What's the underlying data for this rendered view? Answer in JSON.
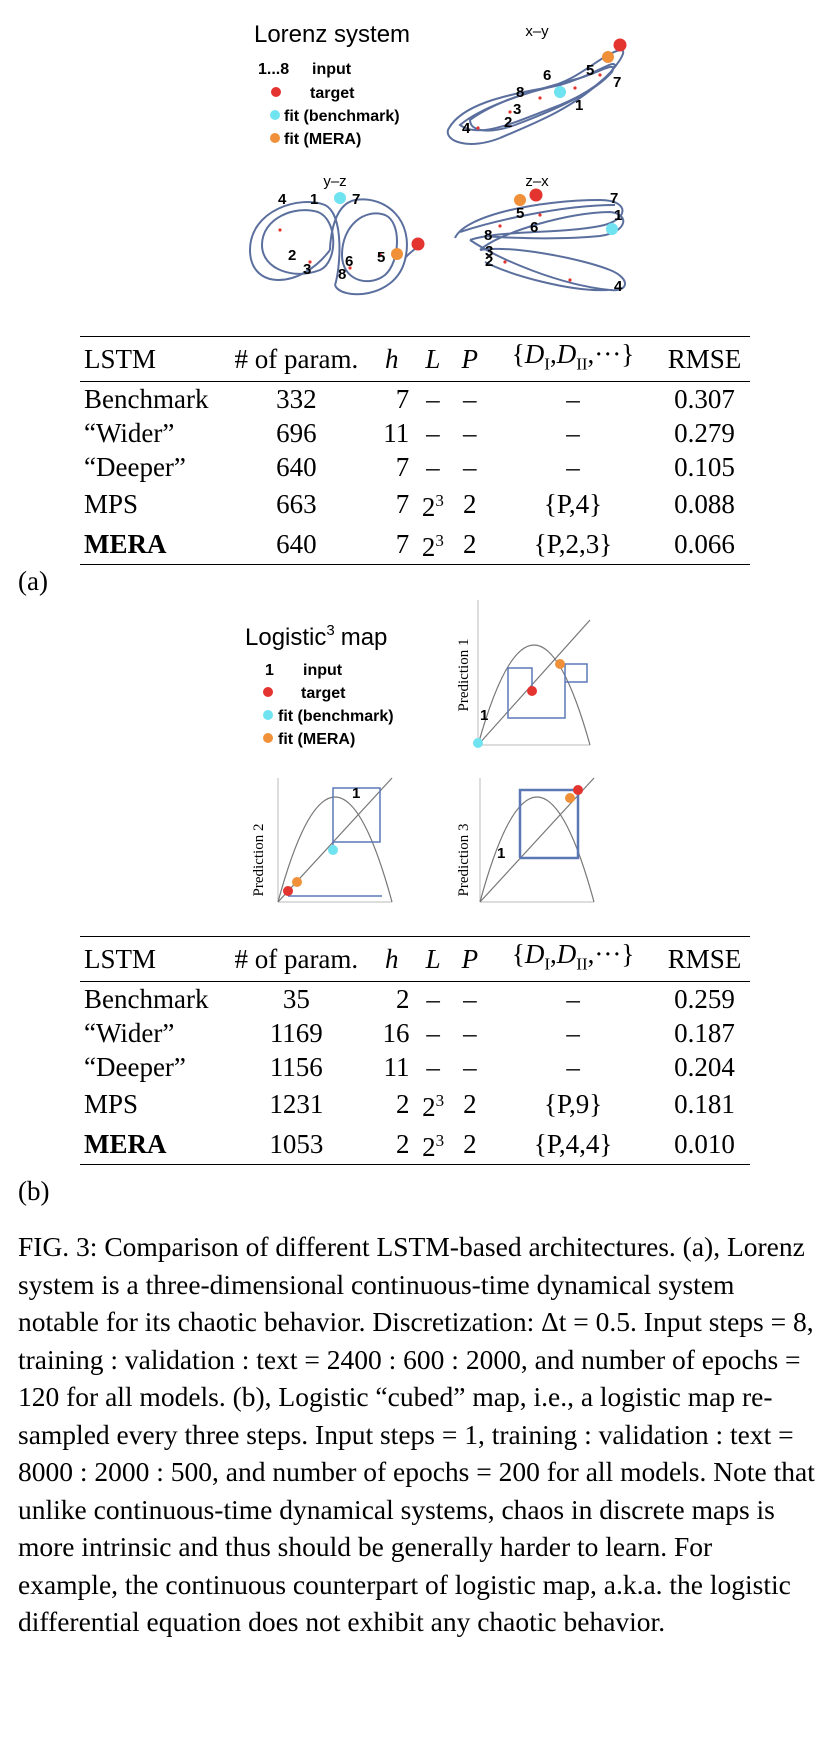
{
  "figure_a": {
    "title": "Lorenz system",
    "legend": [
      {
        "marker": "1...8",
        "label": "input"
      },
      {
        "marker": "red-dot",
        "label": "target"
      },
      {
        "marker": "cyan-dot",
        "label": "fit (benchmark)"
      },
      {
        "marker": "orange-dot",
        "label": "fit (MERA)"
      }
    ],
    "panels": [
      "x–y",
      "y–z",
      "z–x"
    ]
  },
  "table_a": {
    "headers": [
      "LSTM",
      "# of param.",
      "h",
      "L",
      "P",
      "{D_I, D_II, ···}",
      "RMSE"
    ],
    "rows": [
      {
        "name": "Benchmark",
        "params": "332",
        "h": "7",
        "L": "–",
        "P": "–",
        "D": "–",
        "rmse": "0.307"
      },
      {
        "name": "“Wider”",
        "params": "696",
        "h": "11",
        "L": "–",
        "P": "–",
        "D": "–",
        "rmse": "0.279"
      },
      {
        "name": "“Deeper”",
        "params": "640",
        "h": "7",
        "L": "–",
        "P": "–",
        "D": "–",
        "rmse": "0.105"
      },
      {
        "name": "MPS",
        "params": "663",
        "h": "7",
        "L": "2",
        "L_exp": "3",
        "P": "2",
        "D": "{P,4}",
        "rmse": "0.088"
      },
      {
        "name": "MERA",
        "params": "640",
        "h": "7",
        "L": "2",
        "L_exp": "3",
        "P": "2",
        "D": "{P,2,3}",
        "rmse": "0.066"
      }
    ]
  },
  "label_a": "(a)",
  "figure_b": {
    "title": "Logistic",
    "title_sup": "3",
    "title_suffix": "map",
    "legend": [
      {
        "marker": "1",
        "label": "input"
      },
      {
        "marker": "red-dot",
        "label": "target"
      },
      {
        "marker": "cyan-dot",
        "label": "fit (benchmark)"
      },
      {
        "marker": "orange-dot",
        "label": "fit (MERA)"
      }
    ],
    "panels": [
      "Prediction 1",
      "Prediction 2",
      "Prediction 3"
    ]
  },
  "table_b": {
    "headers": [
      "LSTM",
      "# of param.",
      "h",
      "L",
      "P",
      "{D_I, D_II, ···}",
      "RMSE"
    ],
    "rows": [
      {
        "name": "Benchmark",
        "params": "35",
        "h": "2",
        "L": "–",
        "P": "–",
        "D": "–",
        "rmse": "0.259"
      },
      {
        "name": "“Wider”",
        "params": "1169",
        "h": "16",
        "L": "–",
        "P": "–",
        "D": "–",
        "rmse": "0.187"
      },
      {
        "name": "“Deeper”",
        "params": "1156",
        "h": "11",
        "L": "–",
        "P": "–",
        "D": "–",
        "rmse": "0.204"
      },
      {
        "name": "MPS",
        "params": "1231",
        "h": "2",
        "L": "2",
        "L_exp": "3",
        "P": "2",
        "D": "{P,9}",
        "rmse": "0.181"
      },
      {
        "name": "MERA",
        "params": "1053",
        "h": "2",
        "L": "2",
        "L_exp": "3",
        "P": "2",
        "D": "{P,4,4}",
        "rmse": "0.010"
      }
    ]
  },
  "label_b": "(b)",
  "caption": "FIG. 3: Comparison of different LSTM-based architectures. (a), Lorenz system is a three-dimensional continuous-time dynamical system notable for its chaotic behavior. Discretization: Δt = 0.5. Input steps = 8, training : validation : text = 2400 : 600 : 2000, and number of epochs = 120 for all models. (b), Logistic “cubed” map, i.e., a logistic map re-sampled every three steps. Input steps = 1, training : validation : text = 8000 : 2000 : 500, and number of epochs = 200 for all models. Note that unlike continuous-time dynamical systems, chaos in discrete maps is more intrinsic and thus should be generally harder to learn. For example, the continuous counterpart of logistic map, a.k.a. the logistic differential equation does not exhibit any chaotic behavior.",
  "colors": {
    "trajectory": "#5b6f9e",
    "target": "#e3342f",
    "fit_benchmark": "#6fe3f0",
    "fit_mera": "#f0913a",
    "axis": "#bbbbbb",
    "curve": "#777777",
    "cobweb": "#5b78b5"
  }
}
